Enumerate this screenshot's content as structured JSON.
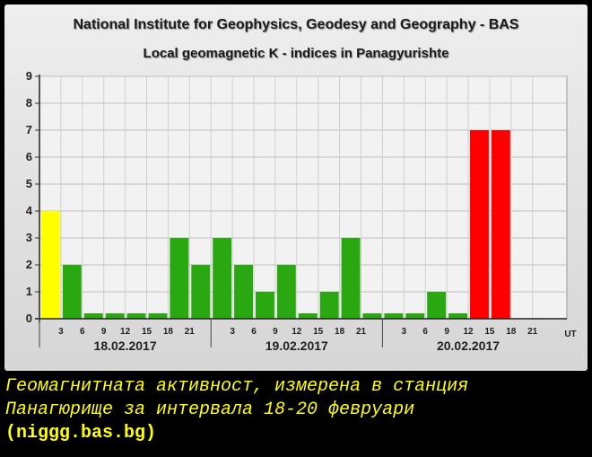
{
  "header": {
    "title": "National Institute for Geophysics, Geodesy and Geography - BAS",
    "subtitle": "Local geomagnetic K - indices in Panagyurishte"
  },
  "caption": {
    "line1": "Геомагнитната активност, измерена в станция",
    "line2": "Панагюрище за интервала 18-20 февруари",
    "source": "(niggg.bas.bg)"
  },
  "chart_data": {
    "type": "bar",
    "ylim": [
      0,
      9
    ],
    "y_ticks": [
      "0",
      "1",
      "2",
      "3",
      "4",
      "5",
      "6",
      "7",
      "8",
      "9"
    ],
    "x_tick_labels": [
      "3",
      "6",
      "9",
      "12",
      "15",
      "18",
      "21"
    ],
    "x_unit": "UT",
    "grid": true,
    "days": [
      "18.02.2017",
      "19.02.2017",
      "20.02.2017"
    ],
    "values": [
      4,
      2,
      0.2,
      0.2,
      0.2,
      0.2,
      3,
      2,
      3,
      2,
      1,
      2,
      0.2,
      1,
      3,
      0.2,
      0.2,
      0.2,
      1,
      0.2,
      7,
      7
    ],
    "colors": {
      "quiet": "#2aa812",
      "unsettled": "#ffff00",
      "storm": "#ff0000"
    },
    "bar_colors": [
      "unsettled",
      "quiet",
      "quiet",
      "quiet",
      "quiet",
      "quiet",
      "quiet",
      "quiet",
      "quiet",
      "quiet",
      "quiet",
      "quiet",
      "quiet",
      "quiet",
      "quiet",
      "quiet",
      "quiet",
      "quiet",
      "quiet",
      "quiet",
      "storm",
      "storm"
    ]
  }
}
